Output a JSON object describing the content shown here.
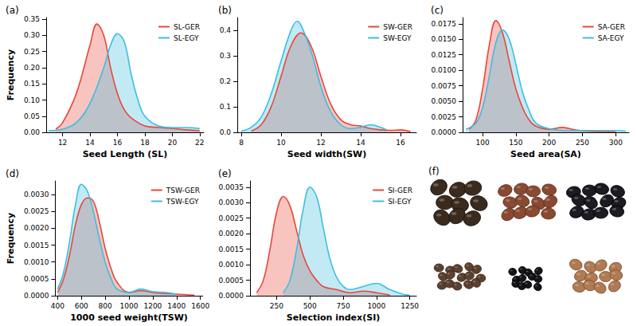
{
  "chart_data": [
    {
      "type": "area",
      "panel": "(a)",
      "xlabel": "Seed Length (SL)",
      "ylabel": "Frequency",
      "xlim": [
        10.8,
        22.3
      ],
      "xticks": [
        12,
        14,
        16,
        18,
        20,
        22
      ],
      "ylim": [
        0,
        0.355
      ],
      "yticks": [
        {
          "value": 0,
          "label": "0.00"
        },
        0.05,
        {
          "value": 0.1,
          "label": "0.10"
        },
        0.15,
        {
          "value": 0.2,
          "label": "0.20"
        },
        0.25,
        {
          "value": 0.3,
          "label": "0.30"
        },
        0.35
      ],
      "grid": false,
      "legend": "upper right",
      "series": [
        {
          "name": "SL-GER",
          "color": "#e8473a",
          "x": [
            11.5,
            12,
            13,
            14,
            14.5,
            15,
            15.5,
            16,
            16.5,
            17,
            18,
            19,
            20,
            21,
            22
          ],
          "values": [
            0.01,
            0.03,
            0.12,
            0.27,
            0.335,
            0.3,
            0.2,
            0.12,
            0.07,
            0.045,
            0.02,
            0.015,
            0.012,
            0.008,
            0.005
          ]
        },
        {
          "name": "SL-EGY",
          "color": "#3fbde0",
          "x": [
            11,
            12,
            13,
            14,
            15,
            15.5,
            16,
            16.5,
            17,
            17.5,
            18,
            19,
            20,
            21,
            22
          ],
          "values": [
            0.005,
            0.01,
            0.03,
            0.09,
            0.2,
            0.27,
            0.305,
            0.28,
            0.18,
            0.1,
            0.05,
            0.02,
            0.015,
            0.015,
            0.012
          ]
        }
      ]
    },
    {
      "type": "area",
      "panel": "(b)",
      "xlabel": "Seed width(SW)",
      "xlim": [
        7.8,
        16.8
      ],
      "xticks": [
        8,
        10,
        12,
        14,
        16
      ],
      "ylim": [
        0,
        0.45
      ],
      "yticks": [
        {
          "value": 0,
          "label": "0.0"
        },
        0.1,
        0.2,
        0.3,
        0.4
      ],
      "grid": false,
      "legend": "upper right",
      "series": [
        {
          "name": "SW-GER",
          "color": "#e8473a",
          "x": [
            8.5,
            9,
            9.5,
            10,
            10.5,
            11,
            11.5,
            12,
            12.5,
            13,
            13.5,
            14,
            14.5,
            15,
            15.5,
            16,
            16.5
          ],
          "values": [
            0.005,
            0.03,
            0.1,
            0.22,
            0.34,
            0.39,
            0.34,
            0.22,
            0.11,
            0.05,
            0.03,
            0.025,
            0.015,
            0.01,
            0.008,
            0.01,
            0.003
          ]
        },
        {
          "name": "SW-EGY",
          "color": "#3fbde0",
          "x": [
            8,
            8.5,
            9,
            9.5,
            10,
            10.5,
            10.8,
            11,
            11.5,
            12,
            12.5,
            13,
            13.5,
            14,
            14.5,
            15,
            15.3
          ],
          "values": [
            0.005,
            0.02,
            0.06,
            0.15,
            0.28,
            0.4,
            0.435,
            0.42,
            0.32,
            0.18,
            0.08,
            0.03,
            0.015,
            0.02,
            0.03,
            0.02,
            0.01
          ]
        }
      ]
    },
    {
      "type": "area",
      "panel": "(c)",
      "xlabel": "Seed area(SA)",
      "xlim": [
        70,
        320
      ],
      "xticks": [
        100,
        150,
        200,
        250,
        300
      ],
      "ylim": [
        0,
        0.0185
      ],
      "yticks": [
        {
          "value": 0,
          "label": "0.0000"
        },
        0.0025,
        {
          "value": 0.005,
          "label": "0.0050"
        },
        0.0075,
        {
          "value": 0.01,
          "label": "0.0100"
        },
        0.0125,
        {
          "value": 0.015,
          "label": "0.0150"
        },
        0.0175
      ],
      "grid": false,
      "legend": "upper right",
      "series": [
        {
          "name": "SA-GER",
          "color": "#e8473a",
          "x": [
            80,
            90,
            100,
            110,
            120,
            130,
            140,
            150,
            160,
            170,
            180,
            200,
            220,
            240,
            260,
            300
          ],
          "values": [
            0.0005,
            0.002,
            0.007,
            0.014,
            0.018,
            0.016,
            0.0115,
            0.007,
            0.004,
            0.002,
            0.001,
            0.0005,
            0.0008,
            0.0004,
            0.0002,
            0.0001
          ]
        },
        {
          "name": "SA-EGY",
          "color": "#3fbde0",
          "x": [
            75,
            90,
            100,
            110,
            120,
            130,
            140,
            150,
            160,
            170,
            180,
            200,
            230,
            260,
            300,
            315
          ],
          "values": [
            0.0005,
            0.0015,
            0.004,
            0.009,
            0.0145,
            0.0165,
            0.015,
            0.011,
            0.0065,
            0.0035,
            0.0015,
            0.0006,
            0.0003,
            0.0003,
            0.0003,
            0.0002
          ]
        }
      ]
    },
    {
      "type": "area",
      "panel": "(d)",
      "xlabel": "1000 seed weight(TSW)",
      "ylabel": "Frequency",
      "xlim": [
        380,
        1620
      ],
      "xticks": [
        400,
        600,
        800,
        1000,
        1200,
        1400,
        1600
      ],
      "ylim": [
        0,
        0.0034
      ],
      "yticks": [
        {
          "value": 0,
          "label": "0.0000"
        },
        0.0005,
        {
          "value": 0.001,
          "label": "0.0010"
        },
        0.0015,
        {
          "value": 0.002,
          "label": "0.0020"
        },
        0.0025,
        {
          "value": 0.003,
          "label": "0.0030"
        }
      ],
      "grid": false,
      "legend": "upper right",
      "series": [
        {
          "name": "TSW-GER",
          "color": "#e8473a",
          "x": [
            400,
            450,
            500,
            550,
            600,
            650,
            700,
            750,
            800,
            850,
            900,
            1000,
            1100,
            1200,
            1400,
            1550
          ],
          "values": [
            0.0001,
            0.0005,
            0.0012,
            0.0021,
            0.0027,
            0.0029,
            0.0028,
            0.0022,
            0.0014,
            0.0008,
            0.0004,
            0.0001,
            0.00015,
            0.0001,
            5e-05,
            2e-05
          ]
        },
        {
          "name": "TSW-EGY",
          "color": "#3fbde0",
          "x": [
            400,
            450,
            500,
            550,
            600,
            650,
            700,
            750,
            800,
            850,
            900,
            1000,
            1100,
            1200,
            1300,
            1400
          ],
          "values": [
            0.0002,
            0.0007,
            0.0016,
            0.0027,
            0.0033,
            0.0031,
            0.0025,
            0.0017,
            0.001,
            0.0005,
            0.0002,
            0.0001,
            0.0002,
            0.00012,
            0.0001,
            5e-05
          ]
        }
      ]
    },
    {
      "type": "area",
      "panel": "(e)",
      "xlabel": "Selection index(SI)",
      "xlim": [
        50,
        1300
      ],
      "xticks": [
        250,
        500,
        750,
        1000,
        1250
      ],
      "ylim": [
        0,
        0.0037
      ],
      "yticks": [
        {
          "value": 0,
          "label": "0.0000"
        },
        0.0005,
        {
          "value": 0.001,
          "label": "0.0010"
        },
        0.0015,
        {
          "value": 0.002,
          "label": "0.0020"
        },
        0.0025,
        {
          "value": 0.003,
          "label": "0.0030"
        },
        0.0035
      ],
      "grid": false,
      "legend": "upper right",
      "series": [
        {
          "name": "SI-GER",
          "color": "#e8473a",
          "x": [
            100,
            150,
            200,
            250,
            300,
            350,
            400,
            450,
            500,
            550,
            600,
            700,
            800,
            900,
            1000,
            1100
          ],
          "values": [
            0.0001,
            0.0005,
            0.0015,
            0.0027,
            0.0032,
            0.0029,
            0.0021,
            0.0013,
            0.0008,
            0.0005,
            0.0003,
            0.0002,
            0.0001,
            0.00015,
            0.0001,
            3e-05
          ]
        },
        {
          "name": "SI-EGY",
          "color": "#3fbde0",
          "x": [
            300,
            350,
            400,
            450,
            500,
            550,
            600,
            650,
            700,
            750,
            800,
            900,
            1000,
            1100,
            1200,
            1250
          ],
          "values": [
            0.0001,
            0.0005,
            0.0015,
            0.0028,
            0.0035,
            0.0032,
            0.0022,
            0.0012,
            0.0006,
            0.0003,
            0.0002,
            0.0003,
            0.0004,
            0.0002,
            5e-05,
            2e-05
          ]
        }
      ]
    }
  ],
  "photo": {
    "panel": "(f)"
  }
}
